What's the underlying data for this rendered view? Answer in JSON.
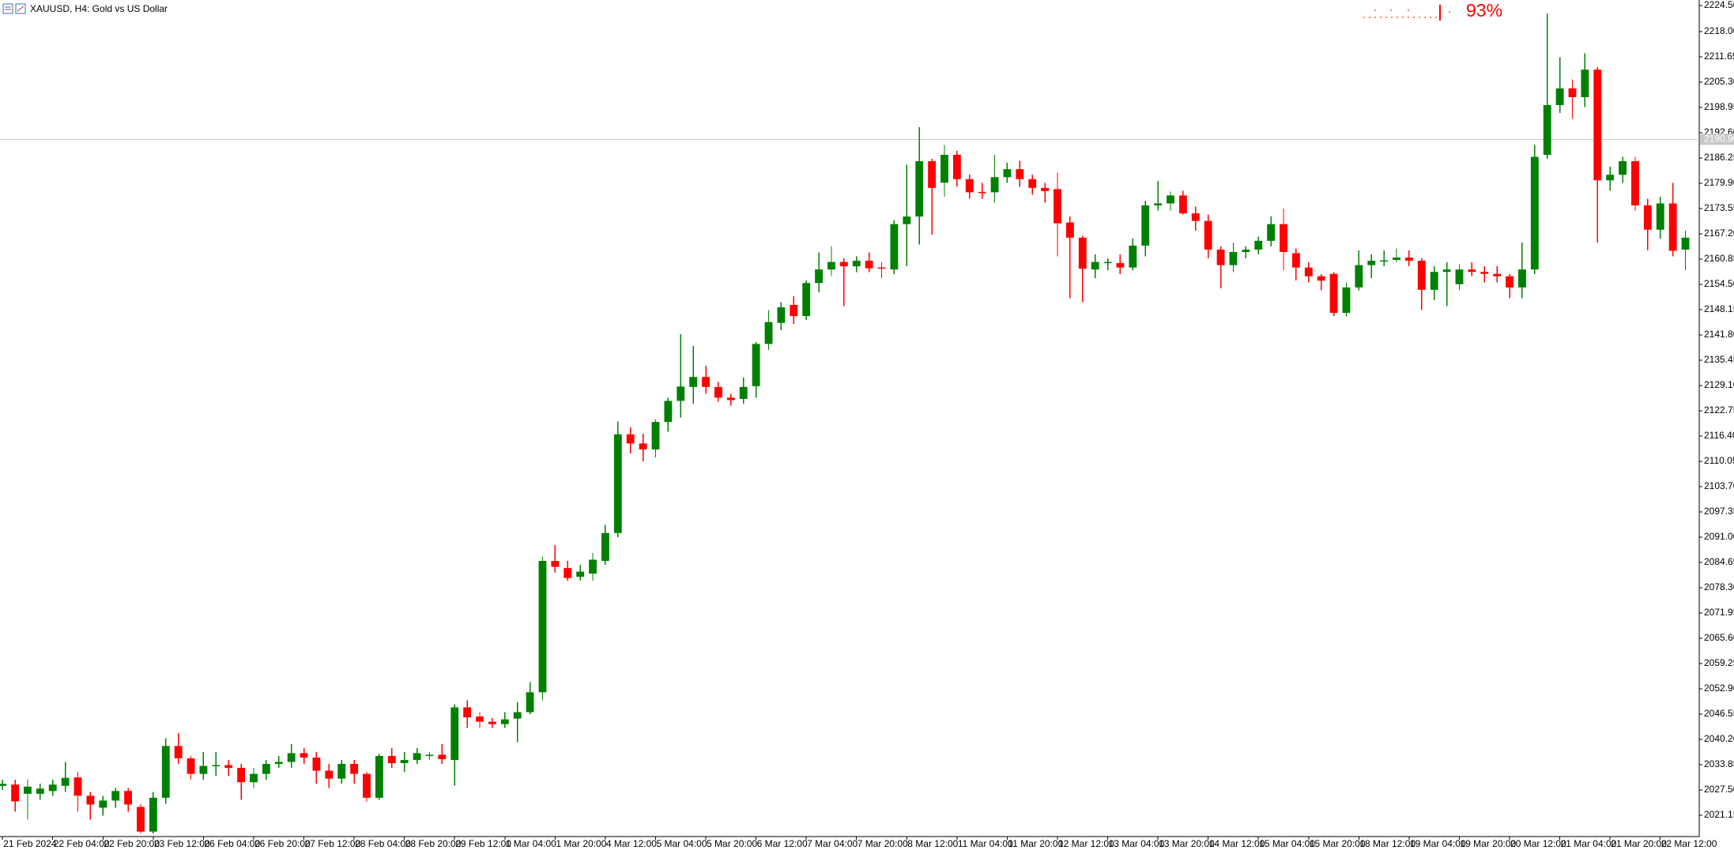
{
  "chart_data": {
    "type": "candlestick",
    "title": "XAUUSD, H4:  Gold vs US Dollar",
    "up_color": "#008000",
    "down_color": "#ff0000",
    "grid": false,
    "categories": [
      "21 Feb 2024",
      null,
      null,
      null,
      "22 Feb 04:00",
      null,
      null,
      null,
      "22 Feb 20:00",
      null,
      null,
      null,
      "23 Feb 12:00",
      null,
      null,
      null,
      "26 Feb 04:00",
      null,
      null,
      null,
      "26 Feb 20:00",
      null,
      null,
      null,
      "27 Feb 12:00",
      null,
      null,
      null,
      "28 Feb 04:00",
      null,
      null,
      null,
      "28 Feb 20:00",
      null,
      null,
      null,
      "29 Feb 12:00",
      null,
      null,
      null,
      "1 Mar 04:00",
      null,
      null,
      null,
      "1 Mar 20:00",
      null,
      null,
      null,
      "4 Mar 12:00",
      null,
      null,
      null,
      "5 Mar 04:00",
      null,
      null,
      null,
      "5 Mar 20:00",
      null,
      null,
      null,
      "6 Mar 12:00",
      null,
      null,
      null,
      "7 Mar 04:00",
      null,
      null,
      null,
      "7 Mar 20:00",
      null,
      null,
      null,
      "8 Mar 12:00",
      null,
      null,
      null,
      "11 Mar 04:00",
      null,
      null,
      null,
      "11 Mar 20:00",
      null,
      null,
      null,
      "12 Mar 12:00",
      null,
      null,
      null,
      "13 Mar 04:00",
      null,
      null,
      null,
      "13 Mar 20:00",
      null,
      null,
      null,
      "14 Mar 12:00",
      null,
      null,
      null,
      "15 Mar 04:00",
      null,
      null,
      null,
      "15 Mar 20:00",
      null,
      null,
      null,
      "18 Mar 12:00",
      null,
      null,
      null,
      "19 Mar 04:00",
      null,
      null,
      null,
      "19 Mar 20:00",
      null,
      null,
      null,
      "20 Mar 12:00",
      null,
      null,
      null,
      "21 Mar 04:00",
      null,
      null,
      null,
      "21 Mar 20:00",
      null,
      null,
      null,
      "22 Mar 12:00",
      null,
      null
    ],
    "open": [
      2028.5,
      2028.8,
      2026.5,
      2026.5,
      2027.2,
      2028.5,
      2030.6,
      2026,
      2023,
      2024.8,
      2027.2,
      2023.2,
      2017,
      2025.5,
      2038.5,
      2035.4,
      2031.5,
      2033.4,
      2033.7,
      2033,
      2029.4,
      2031.5,
      2034,
      2034.5,
      2036.7,
      2035.6,
      2032.3,
      2030.3,
      2034,
      2031.5,
      2025.5,
      2036,
      2034.2,
      2035,
      2036,
      2036.3,
      2035,
      2048.2,
      2045.9,
      2044.6,
      2044,
      2045.4,
      2047,
      2052,
      2085,
      2083.2,
      2081,
      2081.8,
      2085,
      2092,
      2116.8,
      2114.5,
      2113,
      2119.9,
      2125.2,
      2128.7,
      2131.2,
      2128.7,
      2126,
      2125.7,
      2128.9,
      2139.5,
      2144.8,
      2149.3,
      2146.5,
      2154.8,
      2158.2,
      2160.1,
      2159,
      2160.4,
      2158.7,
      2158.2,
      2169.6,
      2171.5,
      2185.4,
      2180,
      2187,
      2180.9,
      2177.7,
      2177.6,
      2181.4,
      2183.4,
      2180.9,
      2178.7,
      2178.4,
      2170,
      2166.2,
      2158.2,
      2159.8,
      2159.8,
      2158.7,
      2164.2,
      2174.3,
      2174.8,
      2176.8,
      2172.3,
      2170.4,
      2163.2,
      2159.3,
      2162.6,
      2163.2,
      2165.4,
      2169.6,
      2162.3,
      2158.7,
      2156.5,
      2157.1,
      2147.3,
      2153.7,
      2159.3,
      2160.2,
      2160.6,
      2161.2,
      2160.4,
      2153.1,
      2157.6,
      2154.5,
      2158.2,
      2157.6,
      2157.1,
      2156.5,
      2153.7,
      2158.2,
      2187,
      2199.5,
      2203.7,
      2201.5,
      2208.4,
      2180.6,
      2182,
      2185.4,
      2174.3,
      2168.2,
      2174.8,
      2163.2
    ],
    "high": [
      2030,
      2030,
      2030,
      2029,
      2030,
      2034.5,
      2032,
      2027,
      2026,
      2028,
      2028,
      2024,
      2027,
      2040.5,
      2041.7,
      2036,
      2037,
      2037,
      2035,
      2034,
      2033,
      2035,
      2036,
      2039,
      2038,
      2037,
      2034,
      2035,
      2035,
      2032,
      2036.5,
      2038,
      2037,
      2038,
      2037,
      2039,
      2049,
      2050,
      2047,
      2045.5,
      2047,
      2049.5,
      2054.5,
      2086,
      2089,
      2085,
      2084,
      2087,
      2094,
      2120,
      2118.5,
      2117,
      2120.5,
      2126,
      2142,
      2139,
      2134,
      2130,
      2127,
      2131,
      2140,
      2148,
      2150,
      2151.5,
      2155.5,
      2162.5,
      2164,
      2161,
      2161.5,
      2162.5,
      2160,
      2170.5,
      2184.5,
      2194,
      2186,
      2189.5,
      2188,
      2182,
      2180,
      2187,
      2185,
      2185.5,
      2182,
      2180,
      2182.5,
      2171.5,
      2166.7,
      2162,
      2161,
      2162,
      2166,
      2175.5,
      2180.5,
      2177.8,
      2178,
      2174,
      2172,
      2164,
      2165,
      2164,
      2166.5,
      2171.5,
      2173.5,
      2163.5,
      2160,
      2157,
      2157.5,
      2155,
      2163,
      2162,
      2163,
      2163.5,
      2163,
      2161,
      2159,
      2160,
      2159.5,
      2160,
      2159,
      2159,
      2157,
      2165,
      2189.5,
      2222.5,
      2211.5,
      2206,
      2212.5,
      2209,
      2184,
      2186.5,
      2186.5,
      2176,
      2176.5,
      2180,
      2168
    ],
    "low": [
      2027.5,
      2022,
      2020,
      2025,
      2026,
      2027,
      2022,
      2020,
      2021,
      2023,
      2022,
      2016.5,
      2016.5,
      2024,
      2034,
      2030,
      2030,
      2031,
      2031,
      2025,
      2028,
      2030,
      2033,
      2033,
      2034,
      2029,
      2028,
      2029,
      2029,
      2024.5,
      2025,
      2033,
      2032,
      2034,
      2035,
      2034,
      2028.5,
      2043,
      2043,
      2043,
      2043,
      2039.5,
      2046.5,
      2050,
      2082,
      2080,
      2080,
      2080,
      2084,
      2091,
      2112,
      2110,
      2111,
      2117.5,
      2121,
      2124.5,
      2127,
      2125,
      2124,
      2124.5,
      2126,
      2138,
      2143,
      2144.5,
      2145.5,
      2152.5,
      2156.5,
      2149,
      2157.5,
      2157.5,
      2156,
      2157,
      2159,
      2164.5,
      2167,
      2176.5,
      2179,
      2176,
      2176,
      2175,
      2180,
      2179,
      2177,
      2175,
      2161.5,
      2151,
      2150,
      2156,
      2158,
      2157,
      2158,
      2161.5,
      2173,
      2173,
      2172,
      2168,
      2161,
      2153.5,
      2157.5,
      2161,
      2162,
      2164,
      2158,
      2155.5,
      2155,
      2153,
      2146.5,
      2146.3,
      2153,
      2156,
      2159,
      2160,
      2159,
      2148,
      2150.5,
      2149,
      2153,
      2156.5,
      2155,
      2155,
      2151,
      2151,
      2157,
      2186,
      2197.5,
      2196,
      2199,
      2165,
      2178,
      2180,
      2173,
      2163,
      2166,
      2161.5,
      2158
    ],
    "close": [
      2029,
      2024.6,
      2028.3,
      2027.8,
      2028.8,
      2030.5,
      2026,
      2023.8,
      2024.8,
      2027.2,
      2023.8,
      2017,
      2025.5,
      2038.5,
      2035.4,
      2031.5,
      2033.5,
      2033.7,
      2033,
      2029.4,
      2031.5,
      2034,
      2034.5,
      2036.7,
      2035.6,
      2032.3,
      2030.3,
      2034,
      2031.5,
      2025.5,
      2036,
      2034.2,
      2035,
      2036.7,
      2036.3,
      2035.2,
      2048.2,
      2045.7,
      2044.6,
      2044,
      2045.2,
      2047,
      2052,
      2085,
      2083.5,
      2080.7,
      2082.3,
      2085.3,
      2092,
      2116.8,
      2114.5,
      2113,
      2119.9,
      2125.2,
      2128.8,
      2131.2,
      2128.7,
      2126,
      2125.4,
      2128.7,
      2139.5,
      2145,
      2148.7,
      2146.5,
      2154.8,
      2158.2,
      2160.1,
      2159,
      2160.4,
      2158.5,
      2158.4,
      2169.6,
      2171.5,
      2185.4,
      2178.7,
      2187,
      2180.9,
      2177.6,
      2177.5,
      2181.4,
      2183.4,
      2180.9,
      2178.7,
      2177.9,
      2169.8,
      2166.2,
      2158.4,
      2160.1,
      2160.1,
      2158.7,
      2164.2,
      2174.3,
      2174.8,
      2176.8,
      2172.3,
      2170.4,
      2163.2,
      2159.3,
      2162.6,
      2163.2,
      2165.4,
      2169.6,
      2162.6,
      2158.7,
      2156.5,
      2155.4,
      2147.3,
      2153.7,
      2159.3,
      2160.4,
      2160.5,
      2161.2,
      2160.4,
      2153.1,
      2157.6,
      2158.2,
      2158.2,
      2157.6,
      2157.1,
      2156.5,
      2153.7,
      2158.2,
      2186.5,
      2199.5,
      2203.7,
      2201.5,
      2208.4,
      2180.6,
      2182,
      2185.4,
      2174.3,
      2168.2,
      2174.8,
      2162.9,
      2166.2
    ],
    "ylim": [
      2015.75,
      2225.9
    ],
    "yticks": [
      {
        "value": 2224.5,
        "label": "2224.50"
      },
      {
        "value": 2218,
        "label": "2218.00"
      },
      2211.65,
      {
        "value": 2205.3,
        "label": "2205.30"
      },
      2198.95,
      {
        "value": 2192.6,
        "label": "2192.60"
      },
      2186.25,
      {
        "value": 2179.9,
        "label": "2179.90"
      },
      2173.55,
      {
        "value": 2167.2,
        "label": "2167.20"
      },
      2160.85,
      {
        "value": 2154.5,
        "label": "2154.50"
      },
      2148.15,
      {
        "value": 2141.8,
        "label": "2141.80"
      },
      2135.45,
      {
        "value": 2129.1,
        "label": "2129.10"
      },
      2122.75,
      {
        "value": 2116.4,
        "label": "2116.40"
      },
      2110.05,
      {
        "value": 2103.7,
        "label": "2103.70"
      },
      2097.35,
      {
        "value": 2091,
        "label": "2091.00"
      },
      2084.65,
      {
        "value": 2078.3,
        "label": "2078.30"
      },
      2071.95,
      {
        "value": 2065.6,
        "label": "2065.60"
      },
      2059.25,
      {
        "value": 2052.9,
        "label": "2052.90"
      },
      2046.55,
      {
        "value": 2040.2,
        "label": "2040.20"
      },
      2033.85,
      {
        "value": 2027.5,
        "label": "2027.50"
      },
      2021.15
    ],
    "price_line": {
      "value": 2190.9,
      "label": "2190.90"
    },
    "spread_meter": {
      "value": 93,
      "value_label": "93%"
    }
  }
}
